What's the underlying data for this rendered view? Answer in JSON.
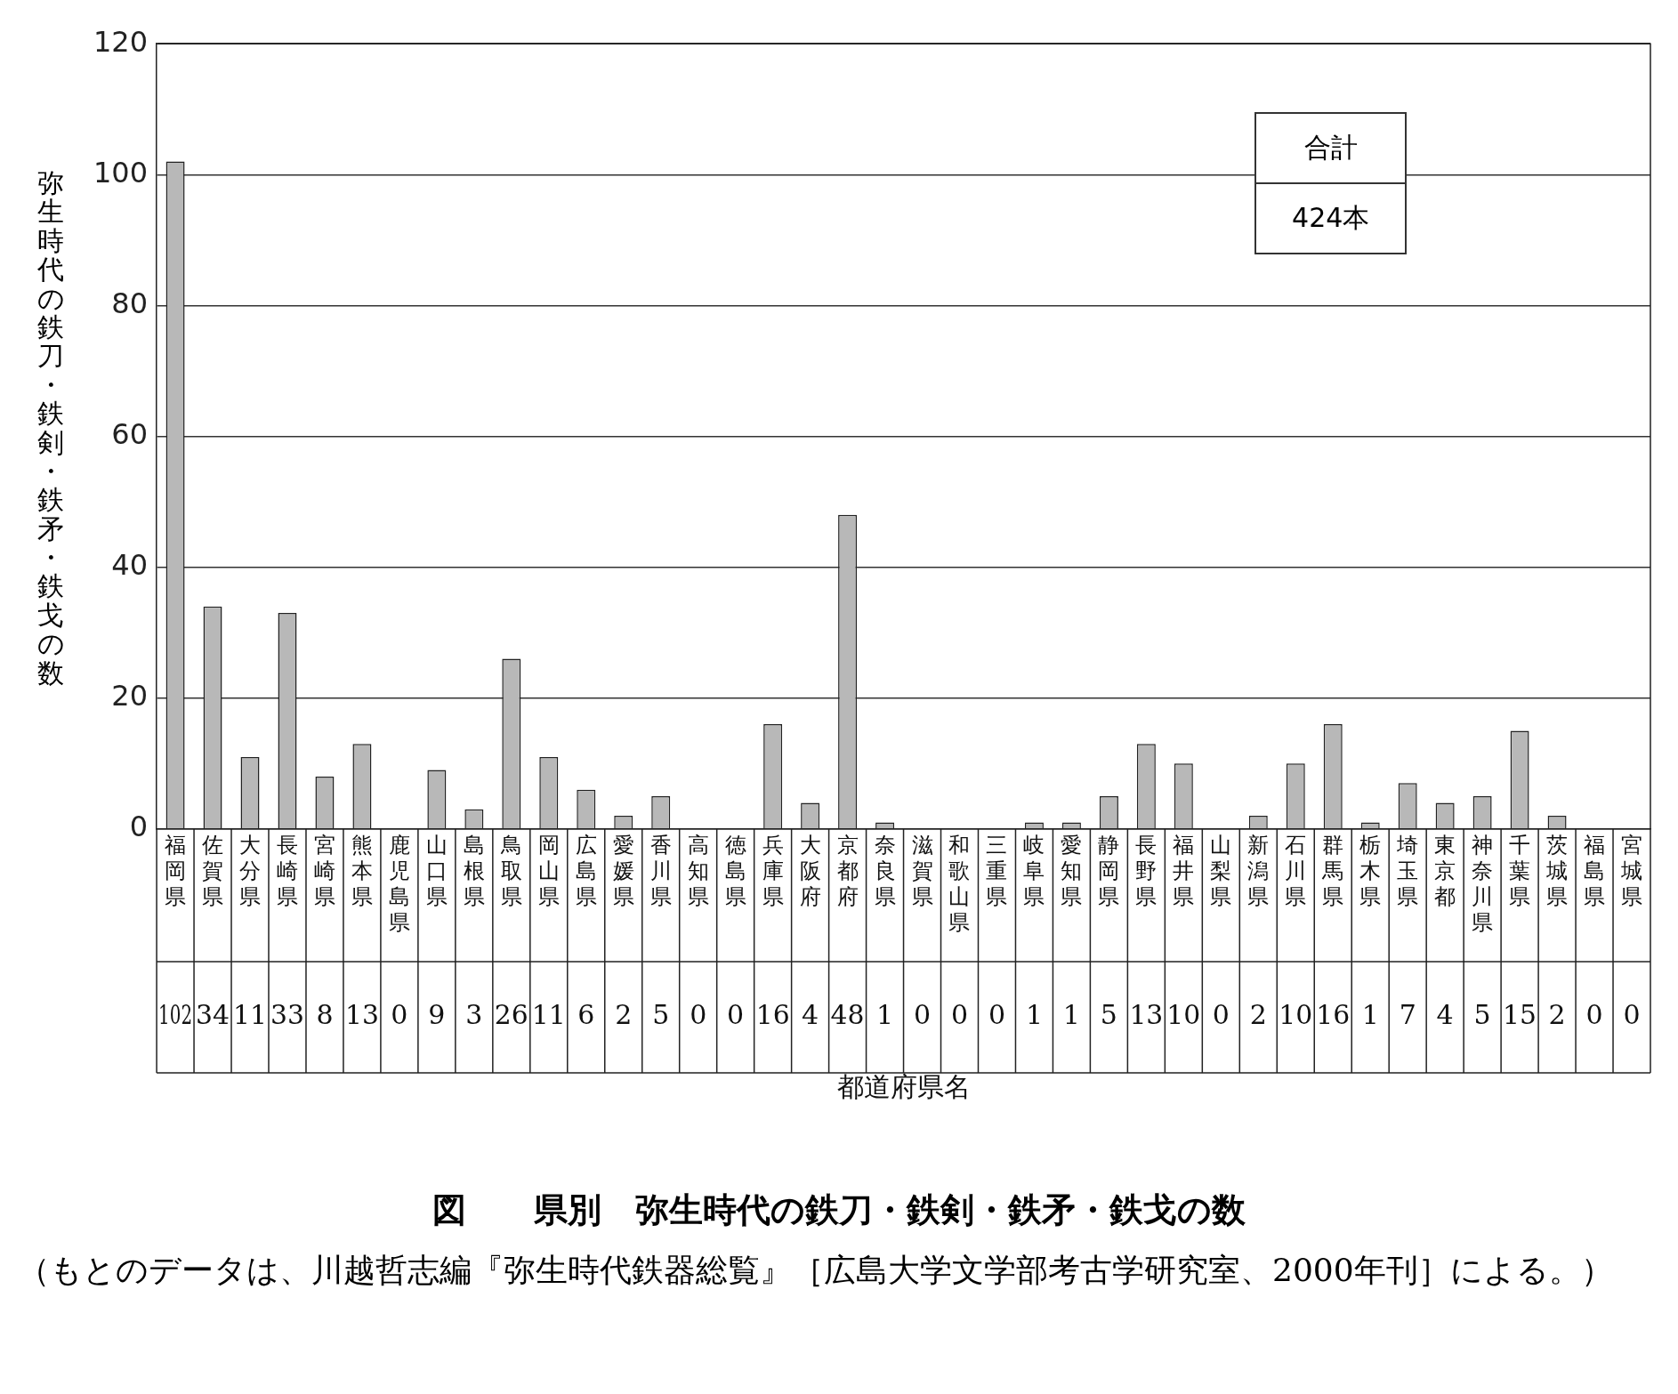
{
  "chart_data": {
    "type": "bar",
    "title": "図　　県別　弥生時代の鉄刀・鉄剣・鉄矛・鉄戈の数",
    "ylabel": "弥生時代の鉄刀・鉄剣・鉄矛・鉄戈の数",
    "categories": [
      "福岡県",
      "佐賀県",
      "大分県",
      "長崎県",
      "宮崎県",
      "熊本県",
      "鹿児島県",
      "山口県",
      "島根県",
      "鳥取県",
      "岡山県",
      "広島県",
      "愛媛県",
      "香川県",
      "高知県",
      "徳島県",
      "兵庫県",
      "大阪府",
      "京都府",
      "奈良県",
      "滋賀県",
      "和歌山県",
      "三重県",
      "岐阜県",
      "愛知県",
      "静岡県",
      "長野県",
      "福井県",
      "山梨県",
      "新潟県",
      "石川県",
      "群馬県",
      "栃木県",
      "埼玉県",
      "東京都",
      "神奈川県",
      "千葉県",
      "茨城県",
      "福島県",
      "宮城県"
    ],
    "values": [
      102,
      34,
      11,
      33,
      8,
      13,
      0,
      9,
      3,
      26,
      11,
      6,
      2,
      5,
      0,
      0,
      16,
      4,
      48,
      1,
      0,
      0,
      0,
      1,
      1,
      5,
      13,
      10,
      0,
      2,
      10,
      16,
      1,
      7,
      4,
      5,
      15,
      2,
      0,
      0
    ],
    "color": "#b8b8b8",
    "ylim": [
      0,
      120
    ],
    "yticks": [
      0,
      20,
      40,
      60,
      80,
      100,
      120
    ],
    "grid": "y",
    "data_labels": true,
    "annotations": [
      "都道府県名",
      "合計",
      "424本",
      "（もとのデータは、川越哲志編『弥生時代鉄器総覧』［広島大学文学部考古学研究室、2000年刊］による。）"
    ]
  }
}
